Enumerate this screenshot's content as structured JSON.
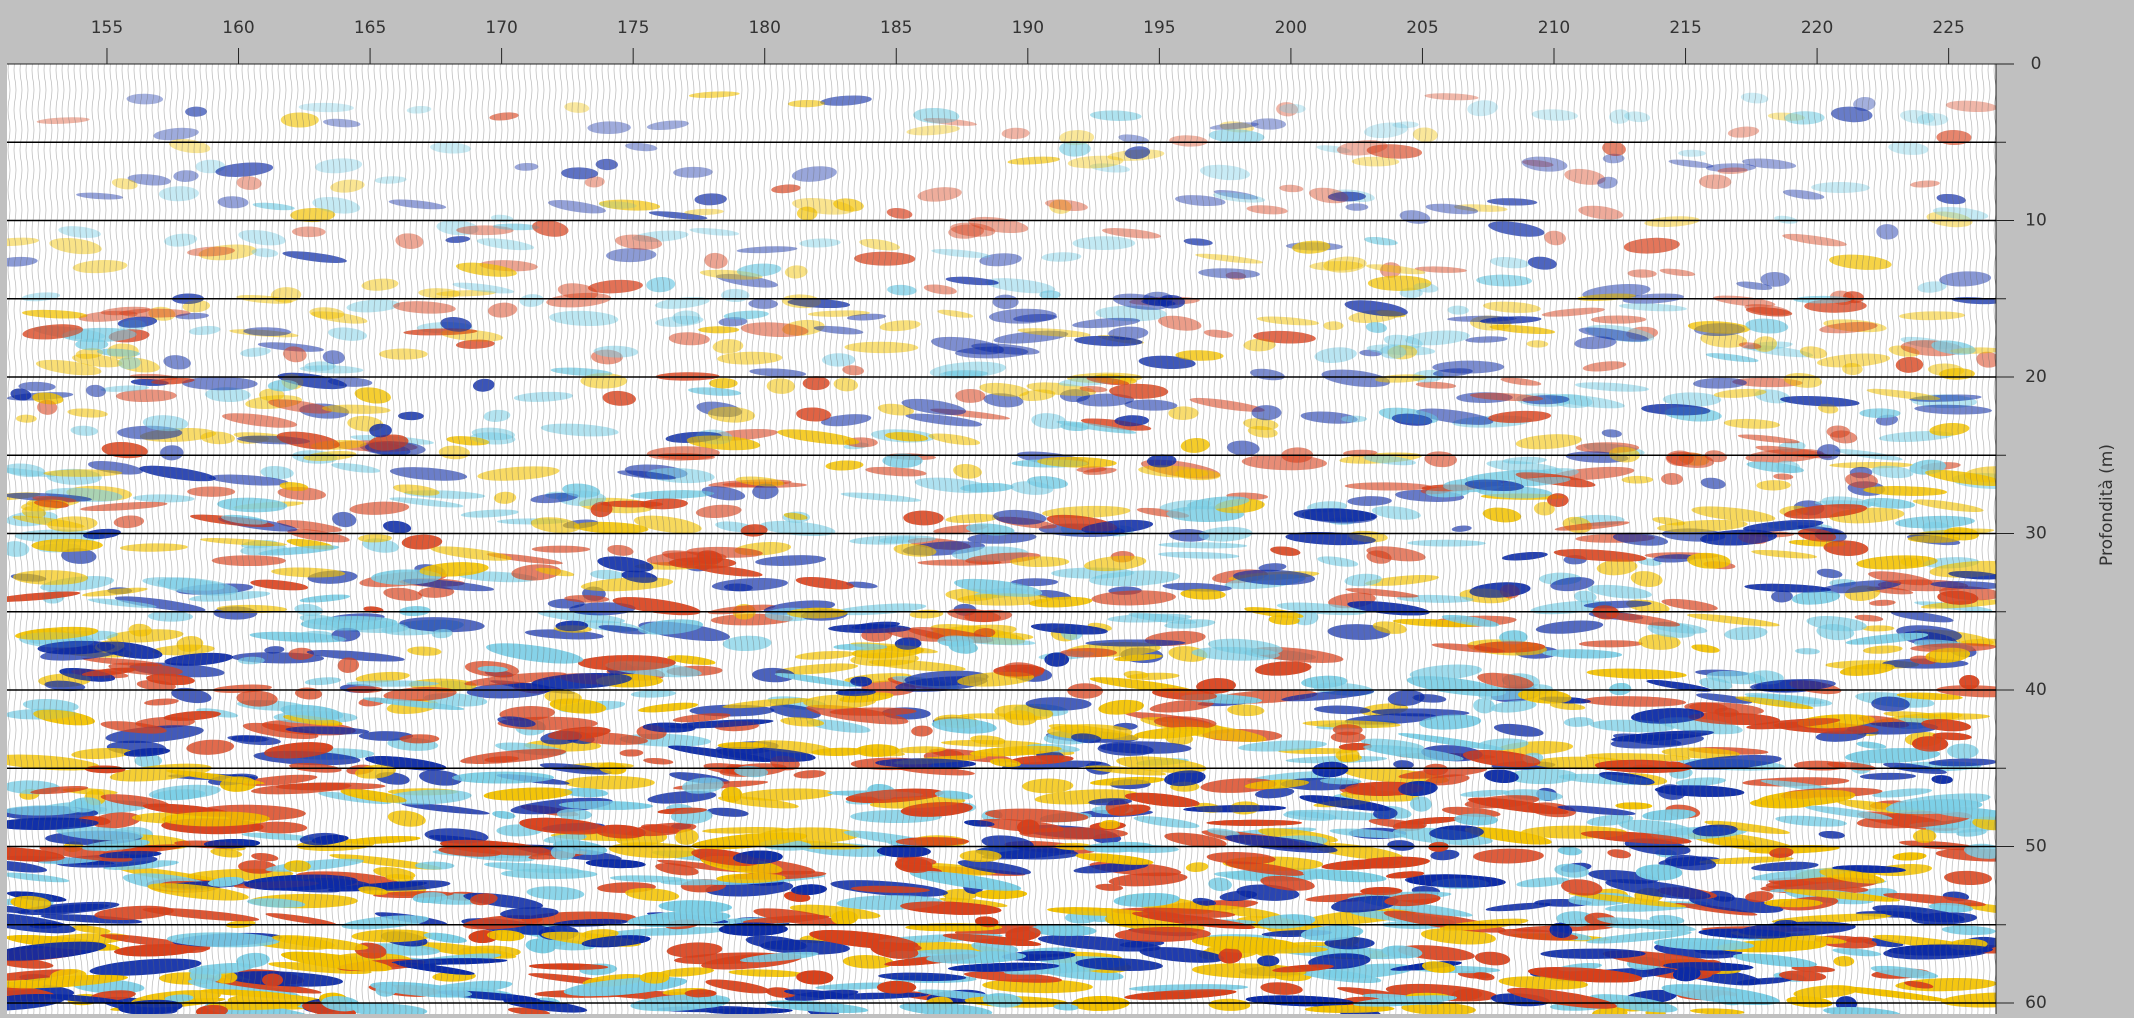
{
  "chart_data": {
    "type": "seismic-section",
    "y_label": "Profondità (m)",
    "xlim": [
      151.2,
      226.8
    ],
    "xticks": [
      155,
      160,
      165,
      170,
      175,
      180,
      185,
      190,
      195,
      200,
      205,
      210,
      215,
      220,
      225
    ],
    "ylim": [
      0,
      60
    ],
    "yticks": [
      0,
      10,
      20,
      30,
      40,
      50,
      60
    ],
    "ygrid": [
      5,
      10,
      15,
      20,
      25,
      30,
      35,
      40,
      45,
      50,
      55,
      60
    ],
    "colors": [
      "#0b2aa6",
      "#f3c200",
      "#d8401a",
      "#7ccfe6"
    ]
  }
}
